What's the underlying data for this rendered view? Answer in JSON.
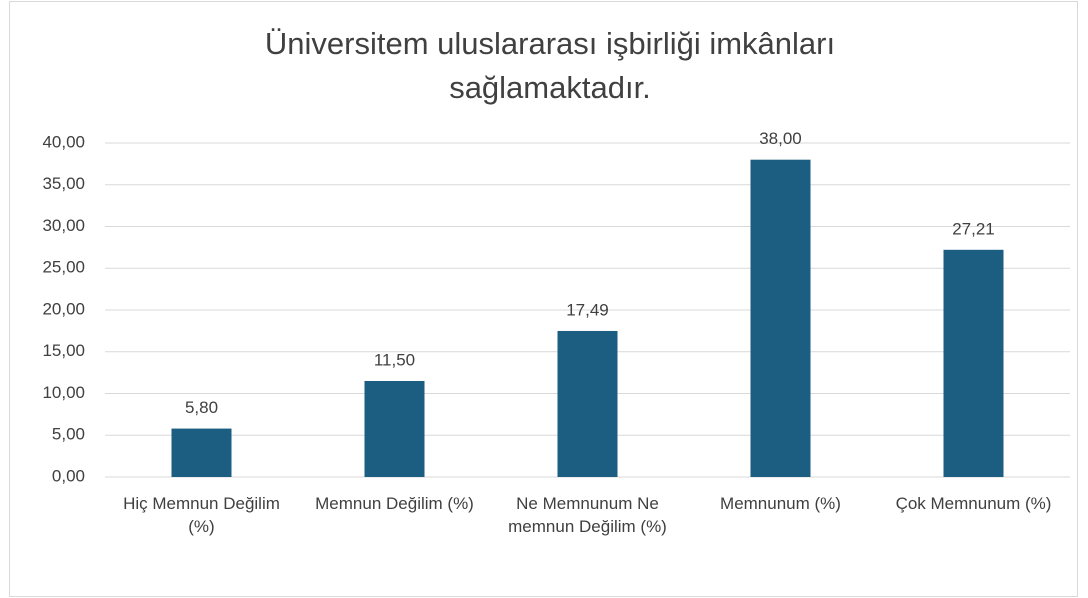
{
  "chart_data": {
    "type": "bar",
    "title": "Üniversitem uluslararası işbirliği imkânları sağlamaktadır.",
    "categories": [
      "Hiç Memnun Değilim (%)",
      "Memnun Değilim (%)",
      "Ne Memnunum Ne memnun Değilim (%)",
      "Memnunum (%)",
      "Çok Memnunum (%)"
    ],
    "values": [
      5.8,
      11.5,
      17.49,
      38.0,
      27.21
    ],
    "value_labels": [
      "5,80",
      "11,50",
      "17,49",
      "38,00",
      "27,21"
    ],
    "color": "#1b5e82",
    "ylim": [
      0,
      40
    ],
    "yticks": [
      {
        "value": 0,
        "label": "0,00"
      },
      {
        "value": 5,
        "label": "5,00"
      },
      {
        "value": 10,
        "label": "10,00"
      },
      {
        "value": 15,
        "label": "15,00"
      },
      {
        "value": 20,
        "label": "20,00"
      },
      {
        "value": 25,
        "label": "25,00"
      },
      {
        "value": 30,
        "label": "30,00"
      },
      {
        "value": 35,
        "label": "35,00"
      },
      {
        "value": 40,
        "label": "40,00"
      }
    ],
    "grid": true
  }
}
